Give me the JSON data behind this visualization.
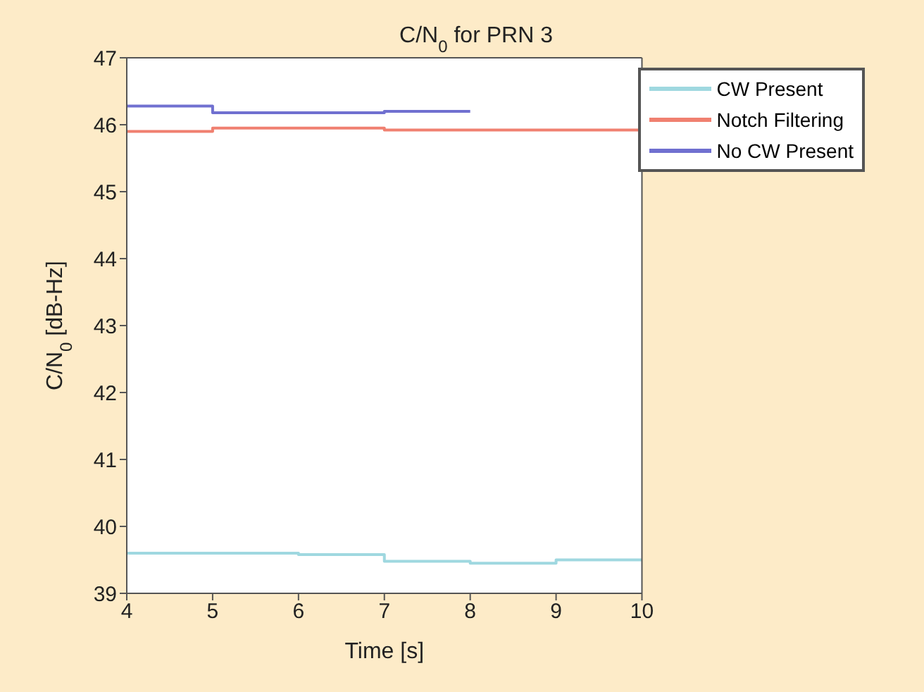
{
  "chart_data": {
    "type": "step",
    "title": "C/N$_{0}$ for PRN 3",
    "xlabel": "Time [s]",
    "ylabel": "C/N$_{0}$ [dB-Hz]",
    "x": [
      4,
      5,
      6,
      7,
      8,
      9,
      10
    ],
    "series": [
      {
        "name": "CW Present",
        "color": "#9fd8e0",
        "values": [
          39.6,
          39.6,
          39.58,
          39.48,
          39.45,
          39.5,
          39.5
        ]
      },
      {
        "name": "Notch Filtering",
        "color": "#f08070",
        "values": [
          45.9,
          45.95,
          45.95,
          45.92,
          45.92,
          45.92,
          45.92
        ]
      },
      {
        "name": "No CW Present",
        "color": "#7070d0",
        "values": [
          46.28,
          46.18,
          46.18,
          46.2,
          46.2,
          null,
          null
        ]
      }
    ],
    "xlim": [
      4,
      10
    ],
    "xticks": [
      4,
      5,
      6,
      7,
      8,
      9,
      10
    ],
    "ylim": [
      39,
      47
    ],
    "yticks": [
      39,
      40,
      41,
      42,
      43,
      44,
      45,
      46,
      47
    ],
    "grid": false,
    "legend": "top right",
    "line_style": "solid",
    "marker": "none"
  }
}
